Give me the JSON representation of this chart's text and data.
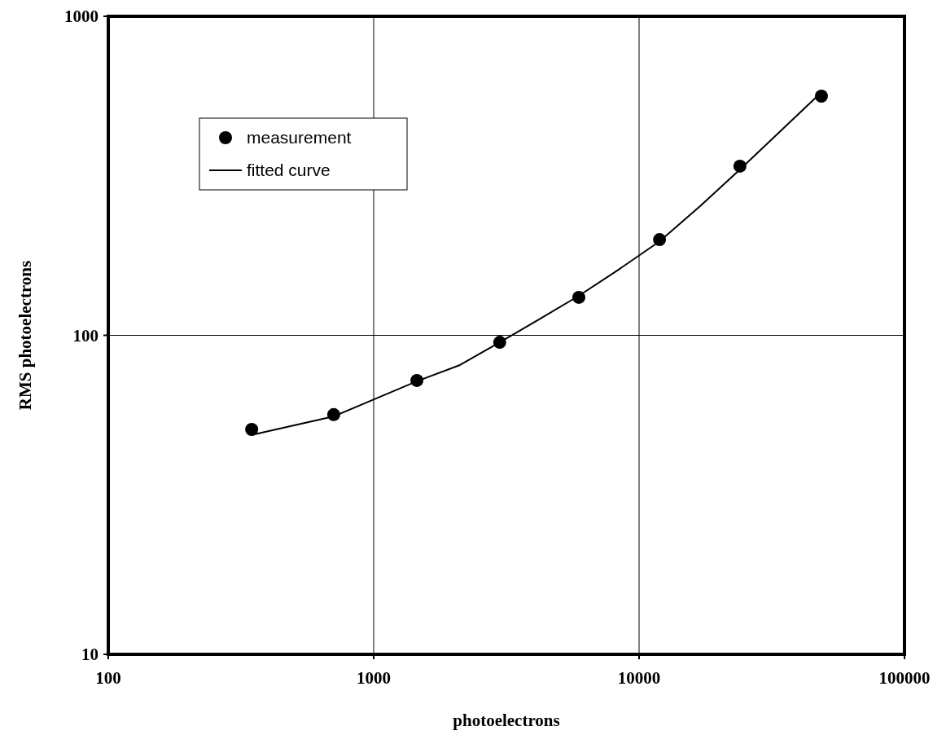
{
  "chart_data": {
    "type": "scatter",
    "xlabel": "photoelectrons",
    "ylabel": "RMS photoelectrons",
    "log": "xy",
    "grid": true,
    "legend": "top left",
    "xlim": [
      100,
      100000
    ],
    "ylim": [
      10,
      1000
    ],
    "xticks": [
      100,
      1000,
      10000,
      100000
    ],
    "yticks": [
      10,
      100,
      1000
    ],
    "series": [
      {
        "name": "measurement",
        "marker": "circle",
        "color": "#000000",
        "x": [
          347,
          707,
          1455,
          2985,
          5929,
          11940,
          23990,
          48640
        ],
        "values": [
          50.7,
          56.4,
          72.2,
          95.1,
          131.5,
          199.5,
          339,
          562
        ]
      },
      {
        "name": "fitted curve",
        "type": "line",
        "marker": "none",
        "line_style": "solid",
        "color": "#000000",
        "x": [
          347,
          707,
          1455,
          2114,
          2985,
          4140,
          5929,
          8375,
          11940,
          16980,
          23990,
          48640
        ],
        "values": [
          48.7,
          55.7,
          71.8,
          80.7,
          95.1,
          111.4,
          133,
          160.7,
          197,
          254,
          331,
          578
        ]
      }
    ]
  }
}
